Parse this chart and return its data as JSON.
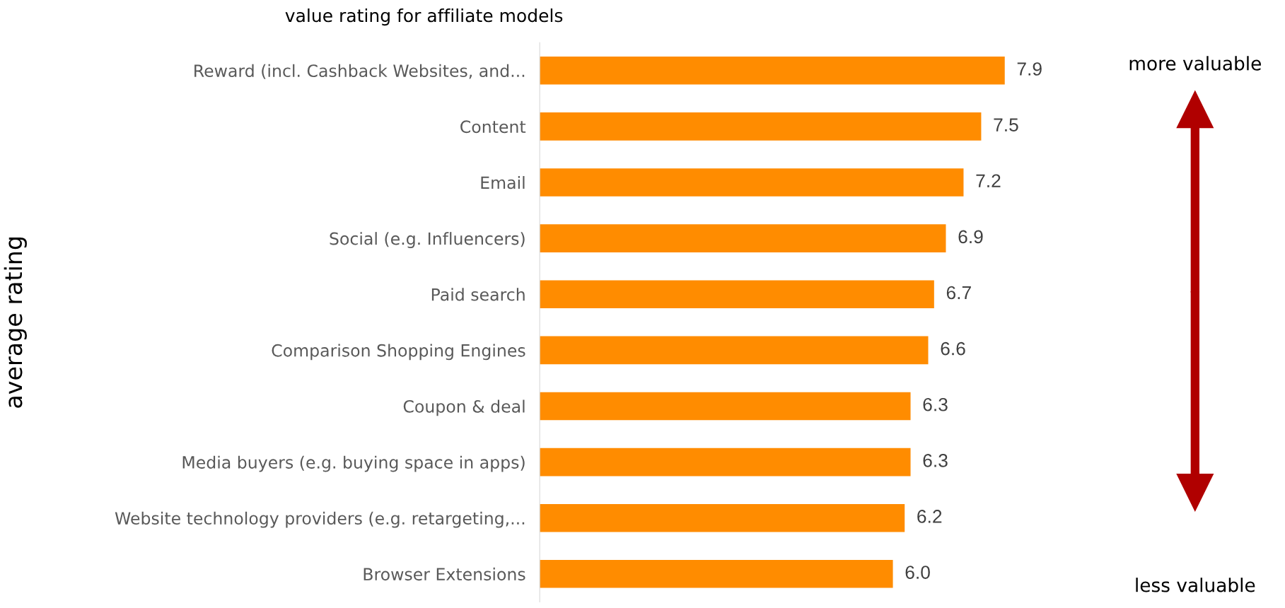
{
  "chart_data": {
    "type": "bar",
    "orientation": "horizontal",
    "title": "value rating for affiliate models",
    "ylabel": "average rating",
    "categories": [
      "Reward (incl. Cashback Websites, and...",
      "Content",
      "Email",
      "Social (e.g. Influencers)",
      "Paid search",
      "Comparison Shopping Engines",
      "Coupon & deal",
      "Media buyers (e.g. buying space in apps)",
      "Website technology providers (e.g. retargeting,...",
      "Browser Extensions"
    ],
    "values": [
      7.9,
      7.5,
      7.2,
      6.9,
      6.7,
      6.6,
      6.3,
      6.3,
      6.2,
      6.0
    ],
    "value_labels": [
      "7.9",
      "7.5",
      "7.2",
      "6.9",
      "6.7",
      "6.6",
      "6.3",
      "6.3",
      "6.2",
      "6.0"
    ],
    "color": "#ff8c00",
    "grid": false,
    "legend": false,
    "tick_labels": "y",
    "annotations": [
      "more valuable",
      "less valuable"
    ]
  }
}
